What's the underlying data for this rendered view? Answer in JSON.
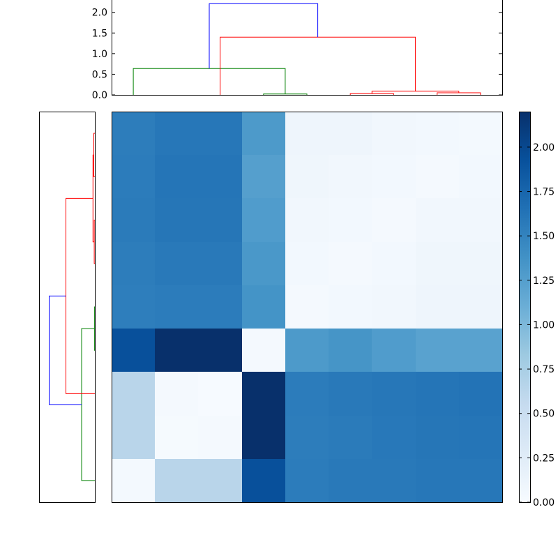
{
  "chart_data": {
    "type": "heatmap",
    "title": "",
    "colormap": "Blues",
    "matrix": [
      [
        1.55,
        1.6,
        1.6,
        1.3,
        0.1,
        0.1,
        0.07,
        0.05,
        0.04
      ],
      [
        1.56,
        1.62,
        1.62,
        1.25,
        0.09,
        0.07,
        0.05,
        0.03,
        0.05
      ],
      [
        1.57,
        1.61,
        1.61,
        1.28,
        0.07,
        0.05,
        0.03,
        0.07,
        0.07
      ],
      [
        1.55,
        1.58,
        1.58,
        1.32,
        0.05,
        0.03,
        0.05,
        0.09,
        0.09
      ],
      [
        1.54,
        1.56,
        1.56,
        1.36,
        0.03,
        0.05,
        0.07,
        0.1,
        0.1
      ],
      [
        1.93,
        2.21,
        2.21,
        0.03,
        1.3,
        1.35,
        1.28,
        1.22,
        1.22
      ],
      [
        0.64,
        0.03,
        0.01,
        2.21,
        1.56,
        1.58,
        1.6,
        1.62,
        1.63
      ],
      [
        0.64,
        0.02,
        0.03,
        2.21,
        1.55,
        1.57,
        1.59,
        1.61,
        1.62
      ],
      [
        0.04,
        0.64,
        0.64,
        1.93,
        1.56,
        1.58,
        1.58,
        1.6,
        1.6
      ]
    ],
    "clim": [
      0,
      2.2
    ],
    "colorbar": {
      "ticks": [
        0.0,
        0.25,
        0.5,
        0.75,
        1.0,
        1.25,
        1.5,
        1.75,
        2.0
      ],
      "tick_labels": [
        "0.00",
        "0.25",
        "0.50",
        "0.75",
        "1.00",
        "1.25",
        "1.50",
        "1.75",
        "2.00"
      ]
    },
    "top_dendrogram": {
      "ylim": [
        0,
        2.3
      ],
      "ticks": [
        0.0,
        0.5,
        1.0,
        1.5,
        2.0
      ],
      "tick_labels": [
        "0.0",
        "0.5",
        "1.0",
        "1.5",
        "2.0"
      ],
      "links": [
        {
          "x": [
            35,
            35,
            45,
            45
          ],
          "y": [
            0.0,
            0.02,
            0.02,
            0.0
          ],
          "color": "#008000"
        },
        {
          "x": [
            5,
            5,
            40,
            40
          ],
          "y": [
            0.0,
            0.64,
            0.64,
            0.02
          ],
          "color": "#008000"
        },
        {
          "x": [
            55,
            55,
            65,
            65
          ],
          "y": [
            0.0,
            0.03,
            0.03,
            0.0
          ],
          "color": "#ff0000"
        },
        {
          "x": [
            75,
            75,
            85,
            85
          ],
          "y": [
            0.0,
            0.05,
            0.05,
            0.0
          ],
          "color": "#ff0000"
        },
        {
          "x": [
            60,
            60,
            80,
            80
          ],
          "y": [
            0.03,
            0.09,
            0.09,
            0.05
          ],
          "color": "#ff0000"
        },
        {
          "x": [
            25,
            25,
            70,
            70
          ],
          "y": [
            0.0,
            1.4,
            1.4,
            0.09
          ],
          "color": "#ff0000"
        },
        {
          "x": [
            22.5,
            22.5,
            47.5,
            47.5
          ],
          "y": [
            0.64,
            2.21,
            2.21,
            1.4
          ],
          "color": "#0000ff"
        }
      ]
    },
    "left_dendrogram": {
      "links": [
        {
          "x": [
            45,
            45,
            35,
            35
          ],
          "y": [
            0.0,
            0.02,
            0.02,
            0.0
          ],
          "color": "#008000"
        },
        {
          "x": [
            5,
            5,
            40,
            40
          ],
          "y": [
            0.0,
            0.64,
            0.64,
            0.02
          ],
          "color": "#008000"
        },
        {
          "x": [
            55,
            55,
            65,
            65
          ],
          "y": [
            0.0,
            0.03,
            0.03,
            0.0
          ],
          "color": "#ff0000"
        },
        {
          "x": [
            75,
            75,
            85,
            85
          ],
          "y": [
            0.0,
            0.05,
            0.05,
            0.0
          ],
          "color": "#ff0000"
        },
        {
          "x": [
            60,
            60,
            80,
            80
          ],
          "y": [
            0.03,
            0.09,
            0.09,
            0.05
          ],
          "color": "#ff0000"
        },
        {
          "x": [
            25,
            25,
            70,
            70
          ],
          "y": [
            0.0,
            1.4,
            1.4,
            0.09
          ],
          "color": "#ff0000"
        },
        {
          "x": [
            22.5,
            22.5,
            47.5,
            47.5
          ],
          "y": [
            0.64,
            2.21,
            2.21,
            1.4
          ],
          "color": "#0000ff"
        }
      ]
    },
    "grid": false
  }
}
